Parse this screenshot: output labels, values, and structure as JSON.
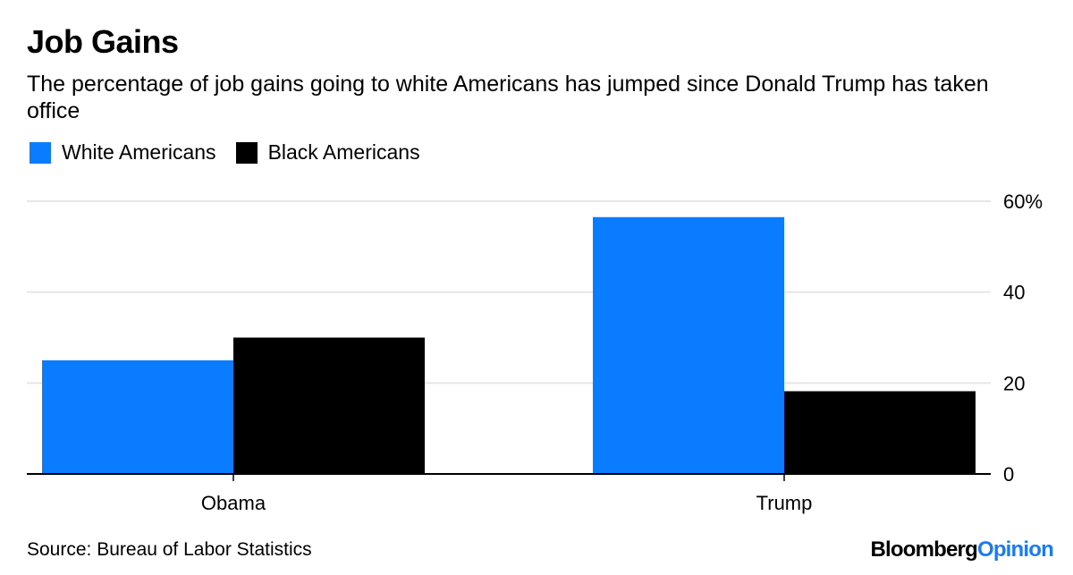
{
  "title": "Job Gains",
  "subtitle": "The percentage of job gains going to white Americans has jumped since Donald Trump has taken office",
  "source": "Source: Bureau of Labor Statistics",
  "brand": {
    "part1": "Bloomberg",
    "part2": "Opinion"
  },
  "colors": {
    "white": "#0a7cff",
    "black": "#000000"
  },
  "chart_data": {
    "type": "bar",
    "title": "Job Gains",
    "subtitle": "The percentage of job gains going to white Americans has jumped since Donald Trump has taken office",
    "xlabel": "",
    "ylabel": "",
    "categories": [
      "Obama",
      "Trump"
    ],
    "series": [
      {
        "name": "White Americans",
        "color": "#0a7cff",
        "values": [
          25,
          56.5
        ]
      },
      {
        "name": "Black Americans",
        "color": "#000000",
        "values": [
          30,
          18.2
        ]
      }
    ],
    "ylim": [
      0,
      60
    ],
    "yticks": [
      0,
      20,
      40,
      60
    ],
    "ytick_labels": [
      "0",
      "20",
      "40",
      "60%"
    ],
    "grid": true,
    "legend": "top-left",
    "yaxis_side": "right"
  }
}
